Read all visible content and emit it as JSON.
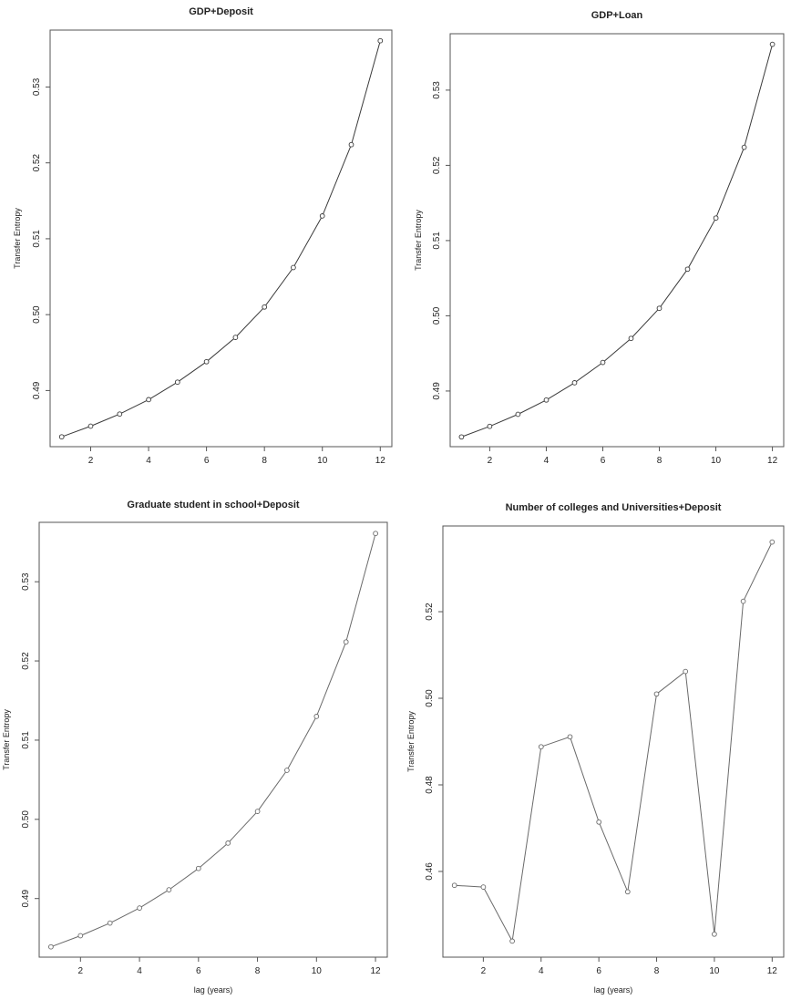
{
  "chart_data": [
    {
      "type": "line",
      "title": "GDP+Deposit",
      "xlabel": "",
      "ylabel": "Transfer Entropy",
      "x": [
        1,
        2,
        3,
        4,
        5,
        6,
        7,
        8,
        9,
        10,
        11,
        12
      ],
      "series": [
        {
          "values": [
            0.4839,
            0.4853,
            0.4869,
            0.4888,
            0.4911,
            0.4938,
            0.497,
            0.501,
            0.5062,
            0.513,
            0.5224,
            0.5361
          ]
        }
      ],
      "xticks": [
        2,
        4,
        6,
        8,
        10,
        12
      ],
      "yticks": [
        0.49,
        0.5,
        0.51,
        0.52,
        0.53
      ],
      "ytick_labels": [
        "0.49",
        "0.50",
        "0.51",
        "0.52",
        "0.53"
      ],
      "xlim": [
        0.6,
        12.4
      ],
      "ylim": [
        0.4826,
        0.5375
      ],
      "markers": "open-circle",
      "line_color": "#3a3a3a",
      "grid": false
    },
    {
      "type": "line",
      "title": "GDP+Loan",
      "xlabel": "",
      "ylabel": "Transfer Entropy",
      "x": [
        1,
        2,
        3,
        4,
        5,
        6,
        7,
        8,
        9,
        10,
        11,
        12
      ],
      "series": [
        {
          "values": [
            0.4839,
            0.4853,
            0.4869,
            0.4888,
            0.4911,
            0.4938,
            0.497,
            0.501,
            0.5062,
            0.513,
            0.5224,
            0.5361
          ]
        }
      ],
      "xticks": [
        2,
        4,
        6,
        8,
        10,
        12
      ],
      "yticks": [
        0.49,
        0.5,
        0.51,
        0.52,
        0.53
      ],
      "ytick_labels": [
        "0.49",
        "0.50",
        "0.51",
        "0.52",
        "0.53"
      ],
      "xlim": [
        0.6,
        12.4
      ],
      "ylim": [
        0.4826,
        0.5375
      ],
      "markers": "open-circle",
      "line_color": "#3a3a3a",
      "grid": false
    },
    {
      "type": "line",
      "title": "Graduate student in school+Deposit",
      "xlabel": "lag (years)",
      "ylabel": "Transfer Entropy",
      "x": [
        1,
        2,
        3,
        4,
        5,
        6,
        7,
        8,
        9,
        10,
        11,
        12
      ],
      "series": [
        {
          "values": [
            0.4839,
            0.4853,
            0.4869,
            0.4888,
            0.4911,
            0.4938,
            0.497,
            0.501,
            0.5062,
            0.513,
            0.5224,
            0.5361
          ]
        }
      ],
      "xticks": [
        2,
        4,
        6,
        8,
        10,
        12
      ],
      "yticks": [
        0.49,
        0.5,
        0.51,
        0.52,
        0.53
      ],
      "ytick_labels": [
        "0.49",
        "0.50",
        "0.51",
        "0.52",
        "0.53"
      ],
      "xlim": [
        0.6,
        12.4
      ],
      "ylim": [
        0.4826,
        0.5375
      ],
      "markers": "open-circle",
      "line_color": "#6a6a6a",
      "grid": false
    },
    {
      "type": "line",
      "title": "Number of colleges and Universities+Deposit",
      "xlabel": "lag (years)",
      "ylabel": "Transfer Entropy",
      "x": [
        1,
        2,
        3,
        4,
        5,
        6,
        7,
        8,
        9,
        10,
        11,
        12
      ],
      "series": [
        {
          "values": [
            0.4568,
            0.4564,
            0.4439,
            0.4888,
            0.4911,
            0.4714,
            0.4553,
            0.501,
            0.5062,
            0.4455,
            0.5224,
            0.5361
          ]
        }
      ],
      "xticks": [
        2,
        4,
        6,
        8,
        10,
        12
      ],
      "yticks": [
        0.46,
        0.48,
        0.5,
        0.52
      ],
      "ytick_labels": [
        "0.46",
        "0.48",
        "0.50",
        "0.52"
      ],
      "xlim": [
        0.6,
        12.4
      ],
      "ylim": [
        0.4402,
        0.5398
      ],
      "markers": "open-circle",
      "line_color": "#6a6a6a",
      "grid": false
    }
  ]
}
